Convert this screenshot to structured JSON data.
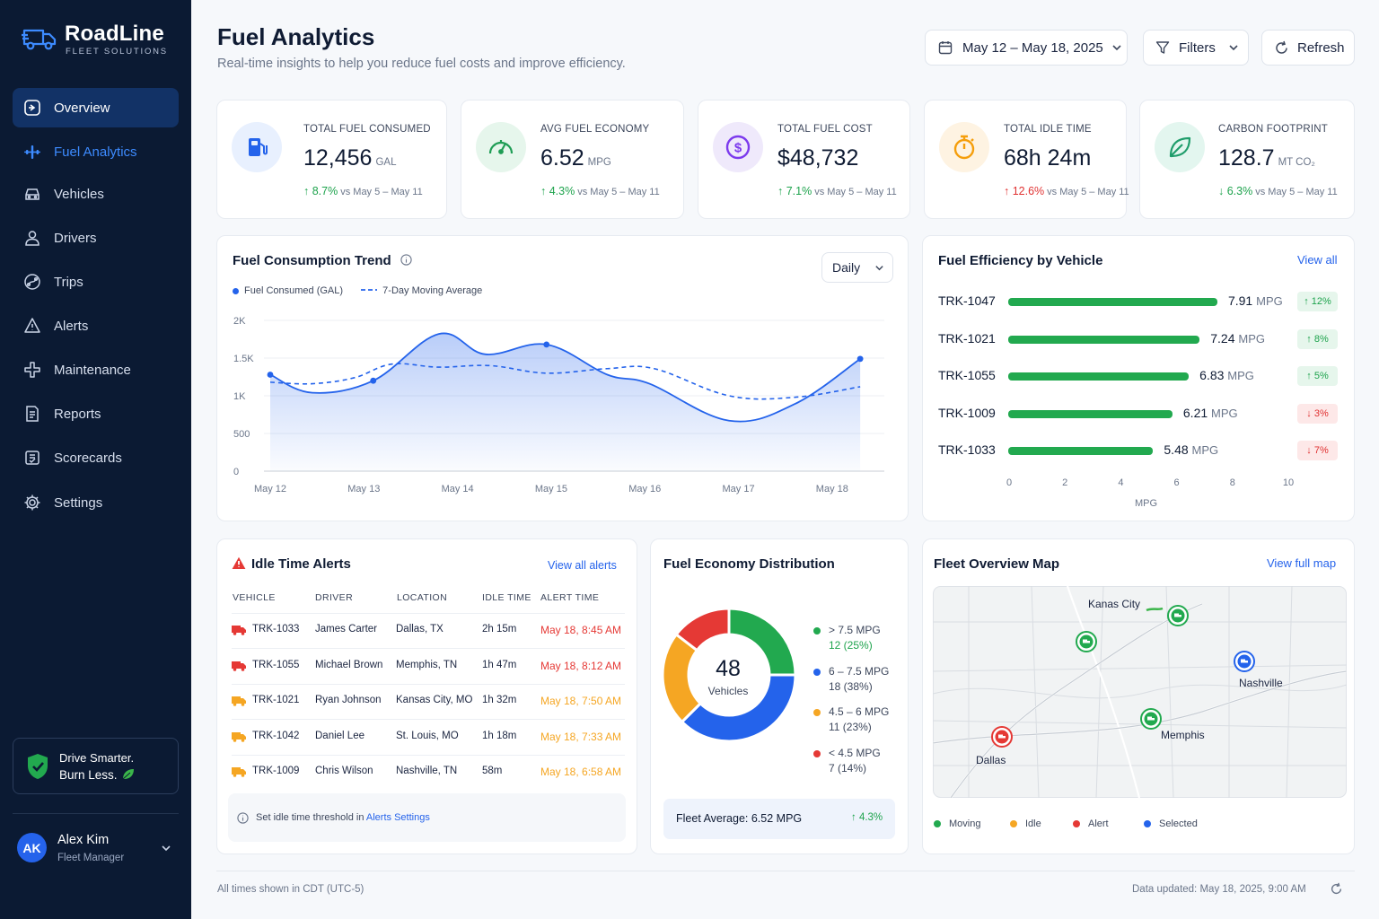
{
  "brand": {
    "name": "RoadLine",
    "subtitle": "FLEET SOLUTIONS"
  },
  "sidebar": {
    "items": [
      {
        "label": "Overview",
        "icon": "overview-icon",
        "state": "active"
      },
      {
        "label": "Fuel Analytics",
        "icon": "fuel-analytics-icon",
        "state": "current-page"
      },
      {
        "label": "Vehicles",
        "icon": "vehicle-icon"
      },
      {
        "label": "Drivers",
        "icon": "driver-icon"
      },
      {
        "label": "Trips",
        "icon": "trips-icon"
      },
      {
        "label": "Alerts",
        "icon": "bell-icon"
      },
      {
        "label": "Maintenance",
        "icon": "wrench-icon"
      },
      {
        "label": "Reports",
        "icon": "report-icon"
      },
      {
        "label": "Scorecards",
        "icon": "scorecard-icon"
      },
      {
        "label": "Settings",
        "icon": "gear-icon"
      }
    ],
    "promo": {
      "line1": "Drive Smarter.",
      "line2": "Burn Less."
    },
    "user": {
      "initials": "AK",
      "name": "Alex Kim",
      "role": "Fleet Manager"
    }
  },
  "header": {
    "title": "Fuel Analytics",
    "subtitle": "Real-time insights to help you reduce fuel costs and improve efficiency.",
    "date_range": "May 12 – May 18, 2025",
    "filters_label": "Filters",
    "refresh_label": "Refresh"
  },
  "kpis": [
    {
      "label": "TOTAL FUEL CONSUMED",
      "value": "12,456",
      "unit": "GAL",
      "change": "↑ 8.7%",
      "compare": "vs May 5 – May 11",
      "icon": "fuel-pump-icon",
      "trend_color": "#1ea34d"
    },
    {
      "label": "AVG FUEL ECONOMY",
      "value": "6.52",
      "unit": "MPG",
      "change": "↑ 4.3%",
      "compare": "vs May 5 – May 11",
      "icon": "speedometer-icon",
      "trend_color": "#1ea34d"
    },
    {
      "label": "TOTAL FUEL COST",
      "value": "$48,732",
      "unit": "",
      "change": "↑ 7.1%",
      "compare": "vs May 5 – May 11",
      "icon": "dollar-icon",
      "trend_color": "#1ea34d"
    },
    {
      "label": "TOTAL IDLE TIME",
      "value": "68h 24m",
      "unit": "",
      "change": "↑ 12.6%",
      "compare": "vs May 5 – May 11",
      "icon": "stopwatch-icon",
      "trend_color": "#e03131"
    },
    {
      "label": "CARBON FOOTPRINT",
      "value": "128.7",
      "unit": "MT CO₂",
      "change": "↓ 6.3%",
      "compare": "vs May 5 – May 11",
      "icon": "leaf-icon",
      "trend_color": "#1ea34d"
    }
  ],
  "trend": {
    "title": "Fuel Consumption Trend",
    "period": "Daily",
    "legend_consumed": "Fuel Consumed (GAL)",
    "legend_avg": "7-Day Moving Average"
  },
  "efficiency": {
    "title": "Fuel Efficiency by Vehicle",
    "view_all": "View all",
    "axis_label": "MPG",
    "unit": "MPG",
    "ticks": [
      "0",
      "2",
      "4",
      "6",
      "8",
      "10"
    ],
    "rows": [
      {
        "vehicle": "TRK-1047",
        "value": 7.91,
        "value_label": "7.91",
        "badge": "↑ 12%",
        "direction": "up"
      },
      {
        "vehicle": "TRK-1021",
        "value": 7.24,
        "value_label": "7.24",
        "badge": "↑ 8%",
        "direction": "up"
      },
      {
        "vehicle": "TRK-1055",
        "value": 6.83,
        "value_label": "6.83",
        "badge": "↑ 5%",
        "direction": "up"
      },
      {
        "vehicle": "TRK-1009",
        "value": 6.21,
        "value_label": "6.21",
        "badge": "↓ 3%",
        "direction": "down"
      },
      {
        "vehicle": "TRK-1033",
        "value": 5.48,
        "value_label": "5.48",
        "badge": "↓ 7%",
        "direction": "down"
      }
    ]
  },
  "idle": {
    "title": "Idle Time Alerts",
    "view_all": "View all alerts",
    "columns": [
      "VEHICLE",
      "DRIVER",
      "LOCATION",
      "IDLE TIME",
      "ALERT TIME"
    ],
    "rows": [
      {
        "vehicle": "TRK-1033",
        "driver": "James Carter",
        "location": "Dallas, TX",
        "idle": "2h 15m",
        "alert": "May 18, 8:45 AM",
        "severity": "red"
      },
      {
        "vehicle": "TRK-1055",
        "driver": "Michael Brown",
        "location": "Memphis, TN",
        "idle": "1h 47m",
        "alert": "May 18, 8:12 AM",
        "severity": "red"
      },
      {
        "vehicle": "TRK-1021",
        "driver": "Ryan Johnson",
        "location": "Kansas City, MO",
        "idle": "1h 32m",
        "alert": "May 18, 7:50 AM",
        "severity": "orange"
      },
      {
        "vehicle": "TRK-1042",
        "driver": "Daniel Lee",
        "location": "St. Louis, MO",
        "idle": "1h 18m",
        "alert": "May 18, 7:33 AM",
        "severity": "orange"
      },
      {
        "vehicle": "TRK-1009",
        "driver": "Chris Wilson",
        "location": "Nashville, TN",
        "idle": "58m",
        "alert": "May 18, 6:58 AM",
        "severity": "orange"
      }
    ],
    "note_prefix": "Set idle time threshold in",
    "note_link": "Alerts Settings"
  },
  "distribution": {
    "title": "Fuel Economy Distribution",
    "total": "48",
    "total_label": "Vehicles",
    "segments": [
      {
        "label": "> 7.5 MPG",
        "detail": "12 (25%)",
        "value": 12,
        "color": "#22a94f"
      },
      {
        "label": "6 – 7.5 MPG",
        "detail": "18 (38%)",
        "value": 18,
        "color": "#2463eb"
      },
      {
        "label": "4.5 – 6 MPG",
        "detail": "11 (23%)",
        "value": 11,
        "color": "#f5a623"
      },
      {
        "label": "< 4.5 MPG",
        "detail": "7 (14%)",
        "value": 7,
        "color": "#e53935"
      }
    ],
    "fleet_avg": "Fleet Average: 6.52 MPG",
    "fleet_change": "↑ 4.3%"
  },
  "map": {
    "title": "Fleet Overview Map",
    "view_full": "View full map",
    "cities": [
      "Kanas City",
      "Nashville",
      "Memphis",
      "Dallas"
    ],
    "legend": [
      {
        "label": "Moving",
        "color": "#22a94f"
      },
      {
        "label": "Idle",
        "color": "#f5a623"
      },
      {
        "label": "Alert",
        "color": "#e53935"
      },
      {
        "label": "Selected",
        "color": "#2463eb"
      }
    ]
  },
  "footer": {
    "timezone": "All times shown in CDT (UTC-5)",
    "updated_label": "Data updated:",
    "updated_value": "May 18, 2025, 9:00 AM"
  },
  "chart_data": {
    "type": "line",
    "title": "Fuel Consumption Trend",
    "categories": [
      "May 12",
      "May 13",
      "May 14",
      "May 15",
      "May 16",
      "May 17",
      "May 18"
    ],
    "y_ticks": [
      "0",
      "500",
      "1K",
      "1.5K",
      "2K"
    ],
    "ylim": [
      0,
      2000
    ],
    "grid": true,
    "legend_position": "top-left",
    "series": [
      {
        "name": "Fuel Consumed (GAL)",
        "style": "solid-area",
        "color": "#2463eb",
        "x": [
          0,
          0.45,
          1.1,
          1.8,
          2.3,
          2.95,
          3.6,
          4.05,
          4.9,
          5.6,
          6.3
        ],
        "y": [
          1280,
          1040,
          1200,
          1820,
          1550,
          1680,
          1280,
          1160,
          670,
          890,
          1490
        ]
      },
      {
        "name": "7-Day Moving Average",
        "style": "dashed",
        "color": "#2463eb",
        "x": [
          0,
          0.45,
          0.9,
          1.3,
          1.8,
          2.35,
          2.95,
          3.6,
          4.1,
          4.9,
          5.6,
          6.3
        ],
        "y": [
          1180,
          1160,
          1240,
          1420,
          1380,
          1400,
          1300,
          1360,
          1360,
          1000,
          980,
          1120
        ]
      }
    ]
  }
}
